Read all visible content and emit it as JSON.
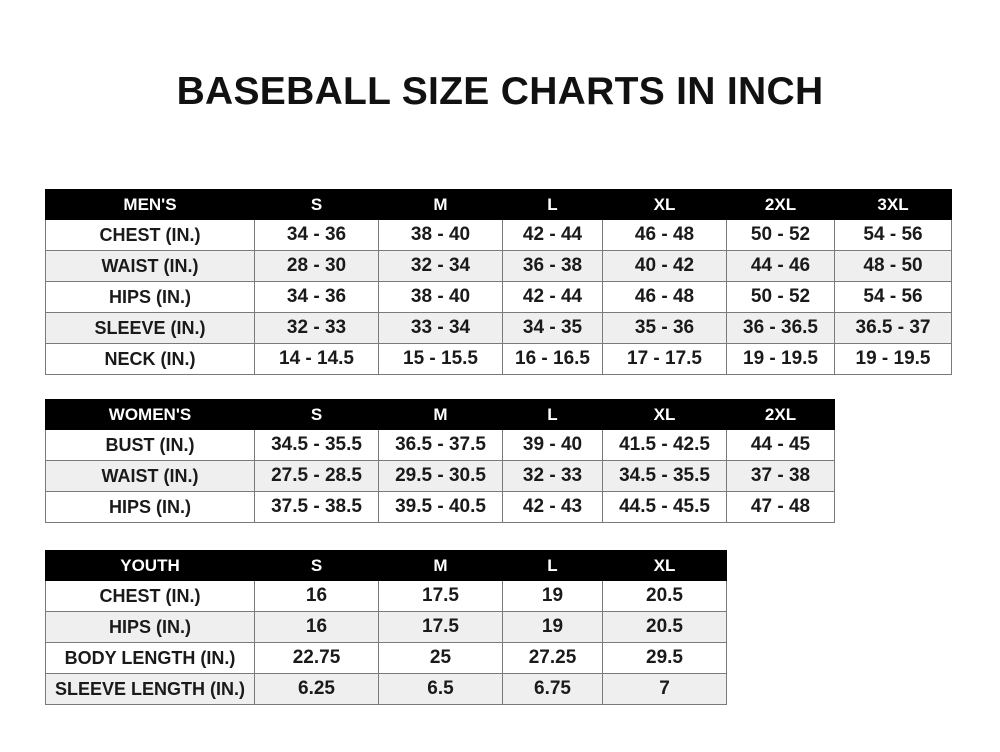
{
  "title": "BASEBALL SIZE CHARTS IN INCH",
  "tables": {
    "men": {
      "header": [
        "MEN'S",
        "S",
        "M",
        "L",
        "XL",
        "2XL",
        "3XL"
      ],
      "rows": [
        [
          "CHEST (IN.)",
          "34 - 36",
          "38 - 40",
          "42 - 44",
          "46 - 48",
          "50 - 52",
          "54 - 56"
        ],
        [
          "WAIST (IN.)",
          "28 - 30",
          "32 - 34",
          "36 - 38",
          "40 - 42",
          "44 - 46",
          "48 - 50"
        ],
        [
          "HIPS (IN.)",
          "34 - 36",
          "38 - 40",
          "42 - 44",
          "46 - 48",
          "50 - 52",
          "54 - 56"
        ],
        [
          "SLEEVE (IN.)",
          "32 - 33",
          "33 - 34",
          "34 - 35",
          "35 - 36",
          "36 - 36.5",
          "36.5 - 37"
        ],
        [
          "NECK (IN.)",
          "14 - 14.5",
          "15 - 15.5",
          "16 - 16.5",
          "17 - 17.5",
          "19 - 19.5",
          "19 - 19.5"
        ]
      ]
    },
    "women": {
      "header": [
        "WOMEN'S",
        "S",
        "M",
        "L",
        "XL",
        "2XL"
      ],
      "rows": [
        [
          "BUST (IN.)",
          "34.5 - 35.5",
          "36.5 - 37.5",
          "39 - 40",
          "41.5 - 42.5",
          "44 - 45"
        ],
        [
          "WAIST (IN.)",
          "27.5 - 28.5",
          "29.5 - 30.5",
          "32 - 33",
          "34.5 - 35.5",
          "37 - 38"
        ],
        [
          "HIPS (IN.)",
          "37.5 - 38.5",
          "39.5 - 40.5",
          "42 - 43",
          "44.5 - 45.5",
          "47 - 48"
        ]
      ]
    },
    "youth": {
      "header": [
        "YOUTH",
        "S",
        "M",
        "L",
        "XL"
      ],
      "rows": [
        [
          "CHEST (IN.)",
          "16",
          "17.5",
          "19",
          "20.5"
        ],
        [
          "HIPS (IN.)",
          "16",
          "17.5",
          "19",
          "20.5"
        ],
        [
          "BODY LENGTH (IN.)",
          "22.75",
          "25",
          "27.25",
          "29.5"
        ],
        [
          "SLEEVE LENGTH (IN.)",
          "6.25",
          "6.5",
          "6.75",
          "7"
        ]
      ]
    }
  }
}
